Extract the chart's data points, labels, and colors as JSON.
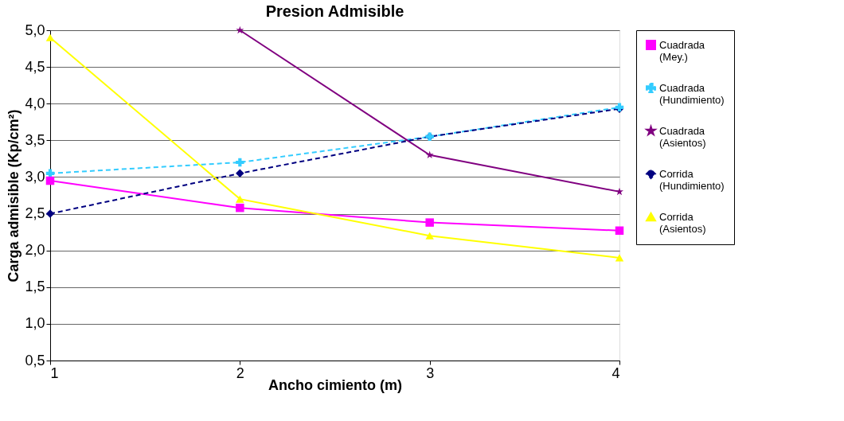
{
  "chart_data": {
    "type": "line",
    "title": "Presion Admisible",
    "xlabel": "Ancho cimiento (m)",
    "ylabel": "Carga admisible (Kp/cm²)",
    "x": [
      1,
      2,
      3,
      4
    ],
    "xlim": [
      1,
      4
    ],
    "xticks": [
      1,
      2,
      3,
      4
    ],
    "ylim": [
      0.5,
      5.0
    ],
    "yticks": [
      {
        "value": 0.5,
        "label": "0,5"
      },
      {
        "value": 1.0,
        "label": "1,0"
      },
      {
        "value": 1.5,
        "label": "1,5"
      },
      {
        "value": 2.0,
        "label": "2,0"
      },
      {
        "value": 2.5,
        "label": "2,5"
      },
      {
        "value": 3.0,
        "label": "3,0"
      },
      {
        "value": 3.5,
        "label": "3,5"
      },
      {
        "value": 4.0,
        "label": "4,0"
      },
      {
        "value": 4.5,
        "label": "4,5"
      },
      {
        "value": 5.0,
        "label": "5,0"
      }
    ],
    "grid": "y",
    "legend": "right",
    "series": [
      {
        "name": "Cuadrada (Mey.)",
        "color": "#ff00ff",
        "marker": "square",
        "line_style": "solid",
        "values": [
          2.95,
          2.58,
          2.38,
          2.27
        ]
      },
      {
        "name": "Cuadrada (Hundimiento)",
        "color": "#33ccff",
        "marker": "cross",
        "line_style": "dashed",
        "values": [
          3.05,
          3.2,
          3.55,
          3.95
        ]
      },
      {
        "name": "Cuadrada (Asientos)",
        "color": "#800080",
        "marker": "star",
        "line_style": "solid",
        "values": [
          null,
          5.0,
          3.3,
          2.8
        ]
      },
      {
        "name": "Corrida (Hundimiento)",
        "color": "#000080",
        "marker": "diamond",
        "line_style": "dashed",
        "values": [
          2.5,
          3.05,
          3.55,
          3.93
        ]
      },
      {
        "name": "Corrida (Asientos)",
        "color": "#ffff00",
        "marker": "triangle",
        "line_style": "solid",
        "values": [
          4.9,
          2.7,
          2.2,
          1.9
        ]
      }
    ]
  }
}
